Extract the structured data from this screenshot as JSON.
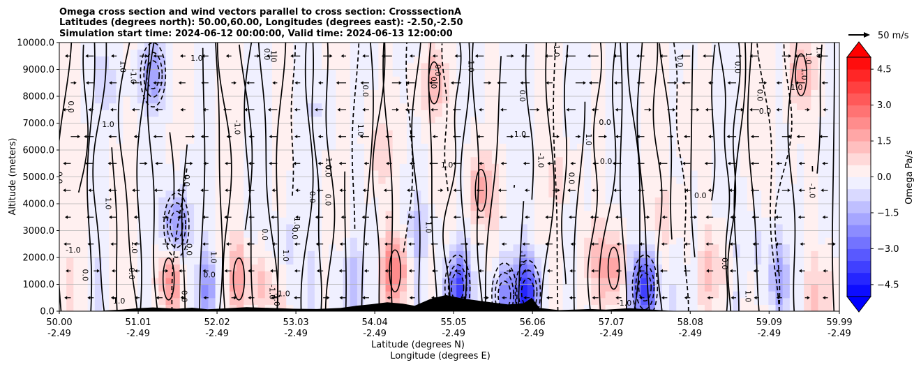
{
  "chart_data": {
    "type": "heatmap",
    "title_lines": [
      "Omega cross section and wind vectors parallel to cross section: CrosssectionA",
      "Latitudes (degrees north): 50.00,60.00, Longitudes (degrees east): -2.50,-2.50",
      "Simulation start time: 2024-06-12 00:00:00, Valid time: 2024-06-13 12:00:00"
    ],
    "ylabel": "Altitude (meters)",
    "xlabel_lines": [
      "Latitude (degrees N)",
      "Longitude (degrees E)"
    ],
    "ylim": [
      0,
      10000
    ],
    "y_ticks": [
      "0.0",
      "1000.0",
      "2000.0",
      "3000.0",
      "4000.0",
      "5000.0",
      "6000.0",
      "7000.0",
      "8000.0",
      "9000.0",
      "10000.0"
    ],
    "y_tick_values": [
      0,
      1000,
      2000,
      3000,
      4000,
      5000,
      6000,
      7000,
      8000,
      9000,
      10000
    ],
    "xlim": [
      50.0,
      59.99
    ],
    "x_tick_values": [
      50.0,
      51.01,
      52.02,
      53.03,
      54.04,
      55.05,
      56.06,
      57.07,
      58.08,
      59.09,
      59.99
    ],
    "x_ticks_lat": [
      "50.00",
      "51.01",
      "52.02",
      "53.03",
      "54.04",
      "55.05",
      "56.06",
      "57.07",
      "58.08",
      "59.09",
      "59.99"
    ],
    "x_ticks_lon": [
      "-2.49",
      "-2.49",
      "-2.49",
      "-2.49",
      "-2.49",
      "-2.49",
      "-2.49",
      "-2.49",
      "-2.49",
      "-2.49",
      "-2.49"
    ],
    "grid": "horizontal",
    "colorbar": {
      "label": "Omega Pa/s",
      "range": [
        -5.0,
        5.0
      ],
      "extend": "both",
      "tick_values": [
        -4.5,
        -3.0,
        -1.5,
        0.0,
        1.5,
        3.0,
        4.5
      ],
      "tick_labels": [
        "−4.5",
        "−3.0",
        "−1.5",
        "0.0",
        "1.5",
        "3.0",
        "4.5"
      ],
      "levels": 20,
      "colormap": "bwr"
    },
    "quiver_key": {
      "label": "50 m/s",
      "speed": 50
    },
    "contour_labels": [
      "0.0",
      "-1.0",
      "1.0"
    ],
    "zero_line_color": "#000000",
    "negative_line_style": "dashed",
    "terrain_color": "#000000",
    "omega_cells": [
      {
        "lat": 50.6,
        "z": 8500,
        "value": -0.9
      },
      {
        "lat": 51.2,
        "z": 8800,
        "value": -2.0
      },
      {
        "lat": 51.5,
        "z": 3200,
        "value": -2.5
      },
      {
        "lat": 51.4,
        "z": 1200,
        "value": 2.0
      },
      {
        "lat": 51.9,
        "z": 800,
        "value": -1.6
      },
      {
        "lat": 52.3,
        "z": 1200,
        "value": 1.6
      },
      {
        "lat": 52.6,
        "z": 900,
        "value": 1.2
      },
      {
        "lat": 52.9,
        "z": 2500,
        "value": -0.8
      },
      {
        "lat": 53.3,
        "z": 7500,
        "value": -0.5
      },
      {
        "lat": 53.7,
        "z": 1000,
        "value": -1.3
      },
      {
        "lat": 54.1,
        "z": 6000,
        "value": 0.9
      },
      {
        "lat": 54.3,
        "z": 1500,
        "value": 2.5
      },
      {
        "lat": 54.6,
        "z": 3000,
        "value": -1.0
      },
      {
        "lat": 54.8,
        "z": 8500,
        "value": 1.5
      },
      {
        "lat": 55.1,
        "z": 900,
        "value": -3.5
      },
      {
        "lat": 55.4,
        "z": 4500,
        "value": 1.8
      },
      {
        "lat": 55.7,
        "z": 600,
        "value": -2.2
      },
      {
        "lat": 56.0,
        "z": 700,
        "value": -4.0
      },
      {
        "lat": 56.4,
        "z": 5000,
        "value": 0.6
      },
      {
        "lat": 56.8,
        "z": 2000,
        "value": 0.9
      },
      {
        "lat": 57.1,
        "z": 1600,
        "value": 1.8
      },
      {
        "lat": 57.5,
        "z": 900,
        "value": -4.2
      },
      {
        "lat": 57.8,
        "z": 3500,
        "value": 0.8
      },
      {
        "lat": 58.1,
        "z": 7000,
        "value": 0.5
      },
      {
        "lat": 58.4,
        "z": 1500,
        "value": 1.0
      },
      {
        "lat": 58.9,
        "z": 2500,
        "value": -0.7
      },
      {
        "lat": 59.2,
        "z": 1200,
        "value": -1.5
      },
      {
        "lat": 59.5,
        "z": 8800,
        "value": 1.6
      },
      {
        "lat": 59.8,
        "z": 600,
        "value": 1.2
      }
    ],
    "terrain": [
      {
        "lat": 50.0,
        "z": 0
      },
      {
        "lat": 50.5,
        "z": 0
      },
      {
        "lat": 50.6,
        "z": 30
      },
      {
        "lat": 50.8,
        "z": 60
      },
      {
        "lat": 51.0,
        "z": 110
      },
      {
        "lat": 51.2,
        "z": 140
      },
      {
        "lat": 51.5,
        "z": 90
      },
      {
        "lat": 51.7,
        "z": 130
      },
      {
        "lat": 51.9,
        "z": 70
      },
      {
        "lat": 52.1,
        "z": 100
      },
      {
        "lat": 52.4,
        "z": 150
      },
      {
        "lat": 52.7,
        "z": 120
      },
      {
        "lat": 53.0,
        "z": 90
      },
      {
        "lat": 53.3,
        "z": 80
      },
      {
        "lat": 53.6,
        "z": 120
      },
      {
        "lat": 53.8,
        "z": 200
      },
      {
        "lat": 54.0,
        "z": 260
      },
      {
        "lat": 54.2,
        "z": 330
      },
      {
        "lat": 54.4,
        "z": 280
      },
      {
        "lat": 54.55,
        "z": 200
      },
      {
        "lat": 54.75,
        "z": 450
      },
      {
        "lat": 54.95,
        "z": 600
      },
      {
        "lat": 55.15,
        "z": 480
      },
      {
        "lat": 55.35,
        "z": 400
      },
      {
        "lat": 55.55,
        "z": 320
      },
      {
        "lat": 55.75,
        "z": 250
      },
      {
        "lat": 55.95,
        "z": 300
      },
      {
        "lat": 56.05,
        "z": 500
      },
      {
        "lat": 56.15,
        "z": 120
      },
      {
        "lat": 56.4,
        "z": 40
      },
      {
        "lat": 56.8,
        "z": 80
      },
      {
        "lat": 57.0,
        "z": 60
      },
      {
        "lat": 57.3,
        "z": 110
      },
      {
        "lat": 57.6,
        "z": 60
      },
      {
        "lat": 57.8,
        "z": 20
      },
      {
        "lat": 58.0,
        "z": 0
      },
      {
        "lat": 59.99,
        "z": 0
      }
    ]
  }
}
